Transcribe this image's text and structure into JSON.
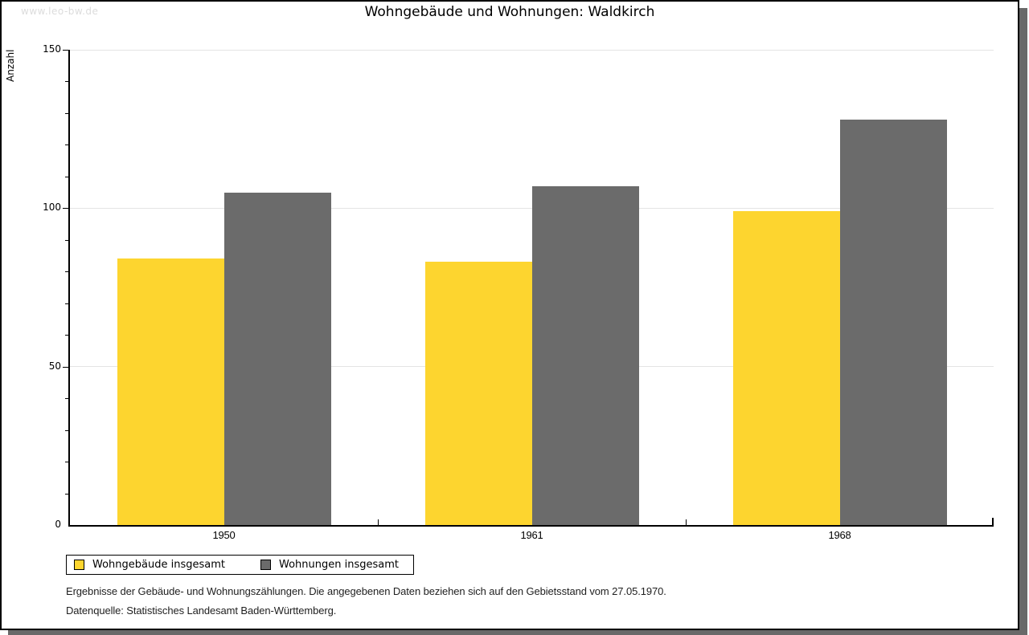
{
  "watermark": "www.leo-bw.de",
  "header": {
    "title": "Wohngebäude und Wohnungen: Waldkirch"
  },
  "chart_data": {
    "type": "bar",
    "title": "Wohngebäude und Wohnungen: Waldkirch",
    "xlabel": "",
    "ylabel": "Anzahl",
    "categories": [
      "1950",
      "1961",
      "1968"
    ],
    "series": [
      {
        "name": "Wohngebäude insgesamt",
        "color": "#FDD52F",
        "values": [
          84,
          83,
          99
        ]
      },
      {
        "name": "Wohnungen insgesamt",
        "color": "#6B6B6B",
        "values": [
          105,
          107,
          128
        ]
      }
    ],
    "ylim": [
      0,
      150
    ],
    "yticks_major": [
      0,
      50,
      100,
      150
    ],
    "ytick_minor_step": 10,
    "grid": "horizontal-major",
    "gridline_color": "#e4e4e4",
    "legend_position": "bottom-left"
  },
  "footnotes": {
    "line1": "Ergebnisse der Gebäude- und Wohnungszählungen. Die angegebenen Daten beziehen sich auf den Gebietsstand vom 27.05.1970.",
    "line2": "Datenquelle: Statistisches Landesamt Baden-Württemberg."
  }
}
